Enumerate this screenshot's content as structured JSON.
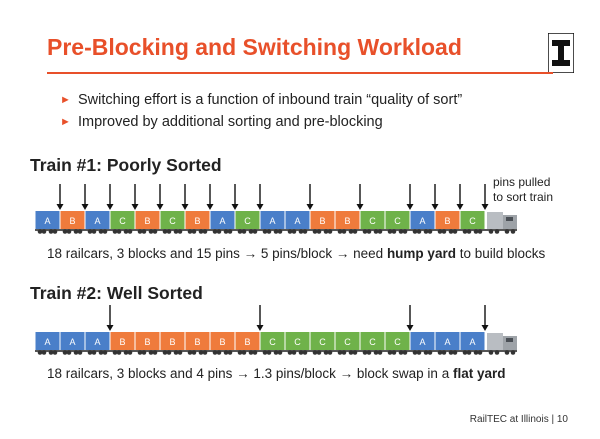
{
  "title": "Pre-Blocking and Switching Workload",
  "bullets": [
    "Switching effort is a function of inbound train “quality of sort”",
    "Improved by additional sorting and pre-blocking"
  ],
  "block_colors": {
    "A": "#4a7fc9",
    "B": "#ef7b3c",
    "C": "#6fb24a"
  },
  "trains": [
    {
      "title": "Train #1: Poorly Sorted",
      "cars": [
        "A",
        "B",
        "A",
        "C",
        "B",
        "C",
        "B",
        "A",
        "C",
        "A",
        "A",
        "B",
        "B",
        "C",
        "C",
        "A",
        "B",
        "C"
      ],
      "pins_before_car": [
        1,
        2,
        3,
        4,
        5,
        6,
        7,
        8,
        9,
        11,
        13,
        15,
        16,
        17,
        18
      ],
      "caption": {
        "pre": "18 railcars, 3 blocks and 15 pins → 5 pins/block → need ",
        "bold": "hump yard",
        "post": " to build blocks"
      }
    },
    {
      "title": "Train #2: Well Sorted",
      "cars": [
        "A",
        "A",
        "A",
        "B",
        "B",
        "B",
        "B",
        "B",
        "B",
        "C",
        "C",
        "C",
        "C",
        "C",
        "C",
        "A",
        "A",
        "A"
      ],
      "pins_before_car": [
        3,
        9,
        15,
        18
      ],
      "caption": {
        "pre": "18 railcars, 3 blocks and 4 pins → 1.3 pins/block → block swap in a ",
        "bold": "flat yard",
        "post": ""
      }
    }
  ],
  "pins_note": [
    "pins pulled",
    "to sort train"
  ],
  "footer": "RailTEC at Illinois | 10"
}
